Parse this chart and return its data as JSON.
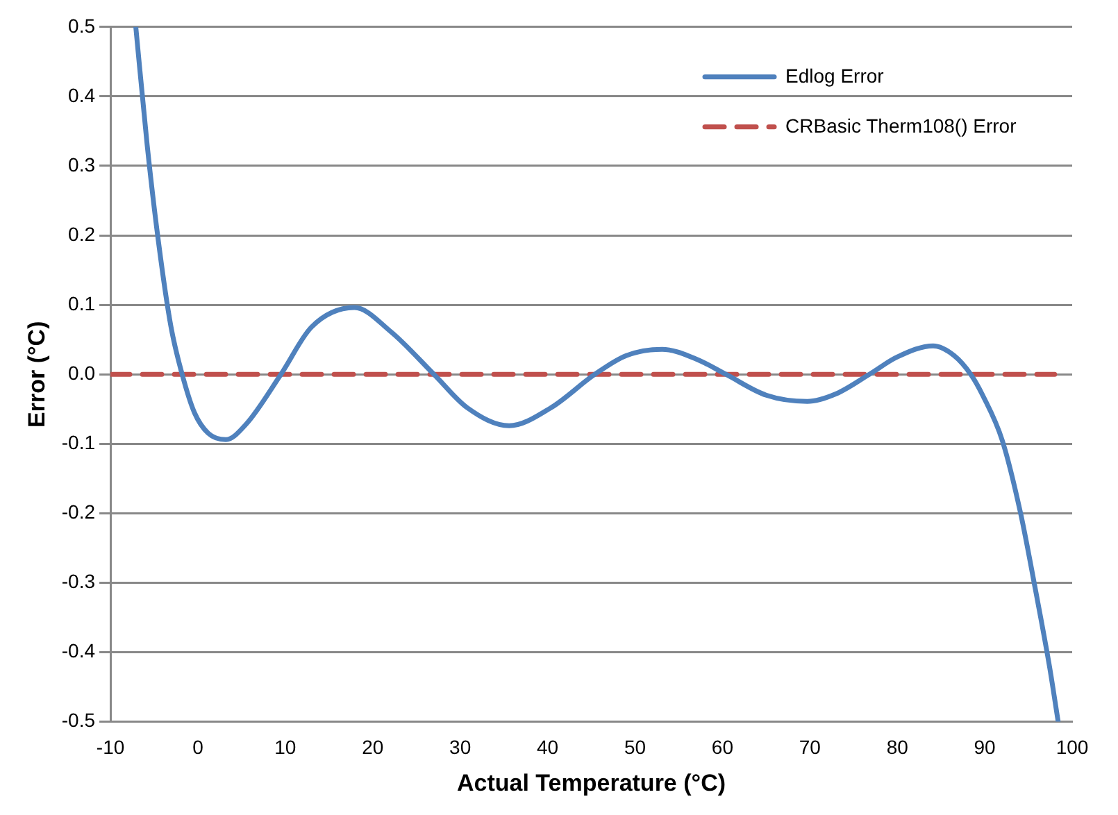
{
  "chart_data": {
    "type": "line",
    "xlabel": "Actual Temperature (°C)",
    "ylabel": "Error (°C)",
    "xlim": [
      -10,
      100
    ],
    "xticks": [
      -10,
      0,
      10,
      20,
      30,
      40,
      50,
      60,
      70,
      80,
      90,
      100
    ],
    "ylim": [
      -0.5,
      0.5
    ],
    "yticks": [
      {
        "value": -0.5,
        "label": "-0.5"
      },
      {
        "value": -0.4,
        "label": "-0.4"
      },
      {
        "value": -0.3,
        "label": "-0.3"
      },
      {
        "value": -0.2,
        "label": "-0.2"
      },
      {
        "value": -0.1,
        "label": "-0.1"
      },
      {
        "value": 0,
        "label": "0.0"
      },
      {
        "value": 0.1,
        "label": "0.1"
      },
      {
        "value": 0.2,
        "label": "0.2"
      },
      {
        "value": 0.3,
        "label": "0.3"
      },
      {
        "value": 0.4,
        "label": "0.4"
      },
      {
        "value": 0.5,
        "label": "0.5"
      }
    ],
    "grid": "y",
    "legend": "top right",
    "marker": "none",
    "series": [
      {
        "name": "Edlog Error",
        "color": "#4f81bd",
        "line_style": "solid",
        "x": [
          -7.1,
          -5.8,
          -4.5,
          -3.1,
          -1.8,
          -0.4,
          1.2,
          3.2,
          5.5,
          9.5,
          13,
          17.9,
          22.1,
          27,
          30.8,
          35.6,
          40.4,
          45.4,
          49,
          53.1,
          57,
          60.4,
          65,
          69.7,
          73,
          76.8,
          80,
          84.1,
          86.5,
          88.4,
          89.8,
          92,
          94.1,
          95.8,
          97.4,
          98.4
        ],
        "values": [
          0.5,
          0.33,
          0.19,
          0.07,
          0,
          -0.055,
          -0.085,
          -0.094,
          -0.072,
          0,
          0.068,
          0.096,
          0.061,
          0,
          -0.048,
          -0.074,
          -0.048,
          0,
          0.027,
          0.036,
          0.022,
          0,
          -0.03,
          -0.039,
          -0.028,
          0,
          0.025,
          0.041,
          0.027,
          0,
          -0.031,
          -0.095,
          -0.2,
          -0.31,
          -0.42,
          -0.5
        ]
      },
      {
        "name": "CRBasic Therm108() Error",
        "color": "#c0504d",
        "line_style": "dashed",
        "x": [
          -10,
          0,
          10,
          20,
          30,
          40,
          50,
          60,
          70,
          80,
          90,
          98
        ],
        "values": [
          0,
          0,
          0,
          0,
          0,
          0,
          0,
          0,
          0,
          0,
          0,
          0
        ]
      }
    ]
  }
}
